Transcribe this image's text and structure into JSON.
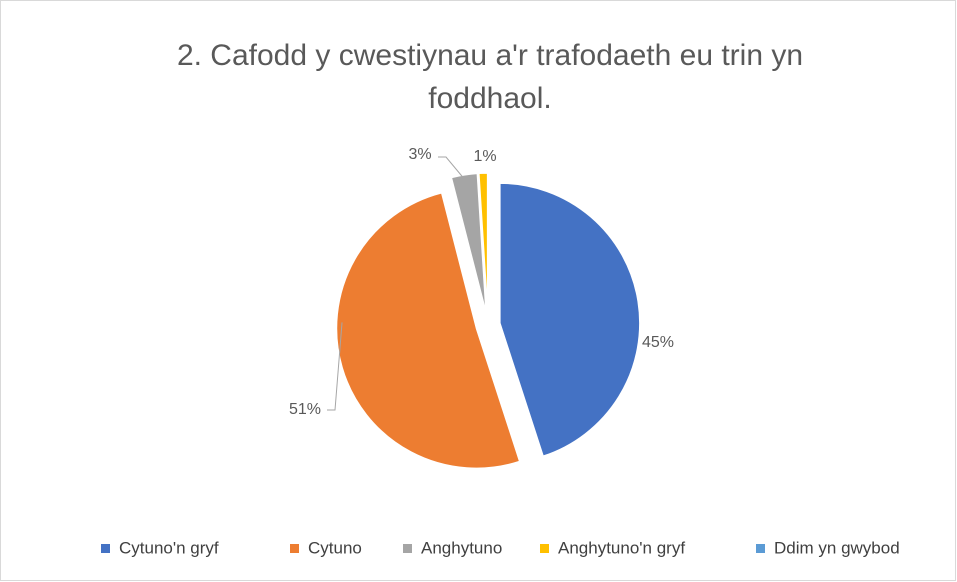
{
  "chart_data": {
    "type": "pie",
    "title": "2.  Cafodd y cwestiynau a'r trafodaeth eu trin yn foddhaol.",
    "categories": [
      "Cytuno'n gryf",
      "Cytuno",
      "Anghytuno",
      "Anghytuno'n gryf",
      "Ddim yn gwybod"
    ],
    "values": [
      45,
      51,
      3,
      1,
      0
    ],
    "value_labels": [
      "45%",
      "51%",
      "3%",
      "1%",
      null
    ],
    "colors": [
      "#4472c4",
      "#ed7d31",
      "#a5a5a5",
      "#ffc000",
      "#5b9bd5"
    ],
    "legend": "bottom"
  }
}
